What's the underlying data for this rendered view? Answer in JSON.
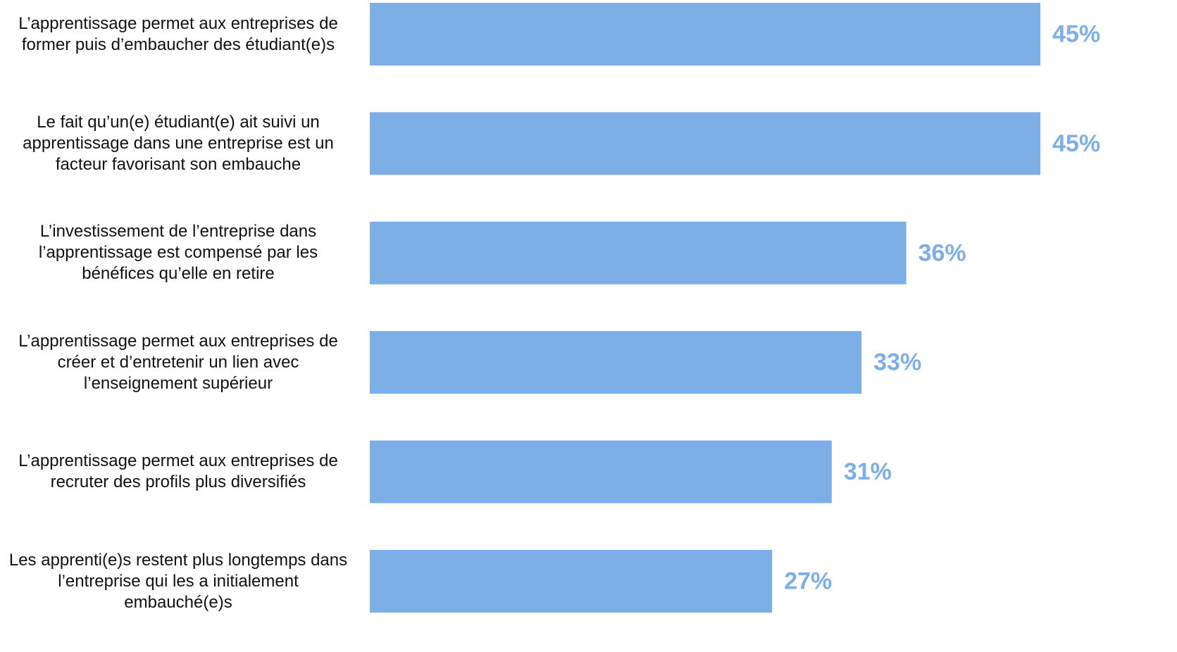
{
  "chart_data": {
    "type": "bar",
    "orientation": "horizontal",
    "categories": [
      "L’apprentissage permet aux entreprises de former puis d’embaucher des étudiant(e)s",
      "Le fait qu’un(e) étudiant(e) ait suivi un apprentissage dans une entreprise est un facteur favorisant son embauche",
      "L’investissement de l’entreprise dans l’apprentissage est compensé par les bénéfices qu’elle en retire",
      "L’apprentissage permet aux entreprises de créer et d’entretenir un lien avec l’enseignement supérieur",
      "L’apprentissage permet aux entreprises de recruter des profils plus diversifiés",
      "Les apprenti(e)s restent plus longtemps dans l’entreprise qui les a initialement embauché(e)s"
    ],
    "values": [
      45,
      45,
      36,
      33,
      31,
      27
    ],
    "value_labels": [
      "45%",
      "45%",
      "36%",
      "33%",
      "31%",
      "27%"
    ],
    "color": "#7daee6",
    "xlim": [
      0,
      45
    ]
  }
}
